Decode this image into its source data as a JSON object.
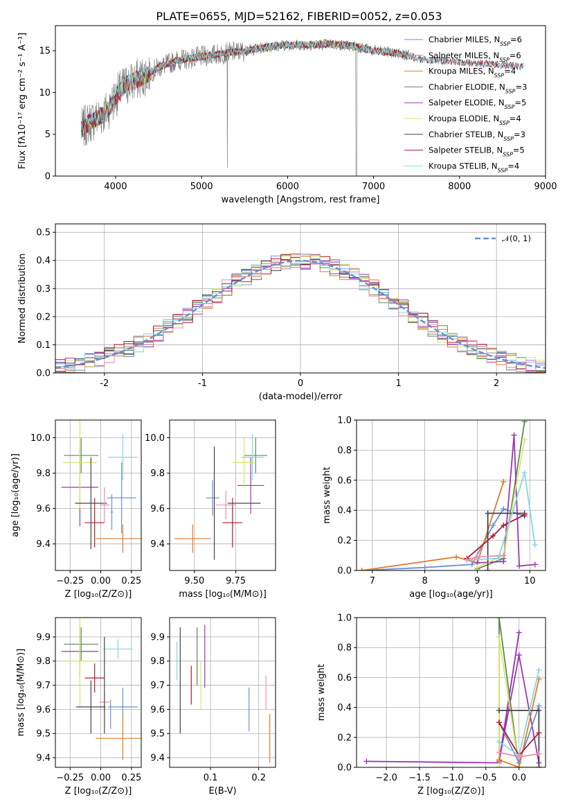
{
  "figure_title": "PLATE=0655, MJD=52162, FIBERID=0052, z=0.053",
  "colors": {
    "Chabrier MILES": "#6a8fd6",
    "Salpeter MILES": "#9a9aa0",
    "Kroupa MILES": "#e07b28",
    "Chabrier ELODIE": "#5c8a55",
    "Salpeter ELODIE": "#9b35b5",
    "Kroupa ELODIE": "#d9e66a",
    "Chabrier STELIB": "#444444",
    "Salpeter STELIB": "#b2182b",
    "Kroupa STELIB": "#84d8e0",
    "pink": "#f08cb4",
    "data": "#7f7f7f",
    "normal": "#6a8fd6"
  },
  "chart_data": [
    {
      "type": "line",
      "xlabel": "wavelength [Angstrom, rest frame]",
      "ylabel": "Flux [fλ10⁻¹⁷ erg cm⁻² s⁻¹ A⁻¹]",
      "xlim": [
        3300,
        9000
      ],
      "ylim": [
        0,
        18
      ],
      "xticks": [
        4000,
        5000,
        6000,
        7000,
        8000,
        9000
      ],
      "yticks": [
        0,
        5,
        10,
        15
      ],
      "legend_position": "right",
      "legend": [
        {
          "label": "Chabrier MILES, N",
          "sub": "SSP",
          "suffix": "=6"
        },
        {
          "label": "Salpeter MILES, N",
          "sub": "SSP",
          "suffix": "=6"
        },
        {
          "label": "Kroupa MILES, N",
          "sub": "SSP",
          "suffix": "=4"
        },
        {
          "label": "Chabrier ELODIE, N",
          "sub": "SSP",
          "suffix": "=3"
        },
        {
          "label": "Salpeter ELODIE, N",
          "sub": "SSP",
          "suffix": "=5"
        },
        {
          "label": "Kroupa ELODIE, N",
          "sub": "SSP",
          "suffix": "=4"
        },
        {
          "label": "Chabrier STELIB, N",
          "sub": "SSP",
          "suffix": "=3"
        },
        {
          "label": "Salpeter STELIB, N",
          "sub": "SSP",
          "suffix": "=5"
        },
        {
          "label": "Kroupa STELIB, N",
          "sub": "SSP",
          "suffix": "=4"
        }
      ],
      "continuum": {
        "wavelength": [
          3600,
          3700,
          3800,
          3900,
          4000,
          4100,
          4300,
          4500,
          4700,
          5000,
          5200,
          5500,
          5800,
          6000,
          6300,
          6500,
          6800,
          7000,
          7200,
          7400,
          7500
        ],
        "flux": [
          5.5,
          6.5,
          7.0,
          7.8,
          9.5,
          10.8,
          11.8,
          13.0,
          13.8,
          14.3,
          14.6,
          15.0,
          15.5,
          15.7,
          15.7,
          15.8,
          15.5,
          15.0,
          14.8,
          14.5,
          14.0
        ]
      }
    },
    {
      "type": "histogram",
      "xlabel": "(data-model)/error",
      "ylabel": "Normed distribution",
      "xlim": [
        -2.5,
        2.5
      ],
      "ylim": [
        0,
        0.53
      ],
      "xticks": [
        -2,
        -1,
        0,
        1,
        2
      ],
      "yticks": [
        0.0,
        0.1,
        0.2,
        0.3,
        0.4,
        0.5
      ],
      "normal_curve_label": "𝒩(0, 1)",
      "bin_width": 0.1
    },
    {
      "type": "errorbar",
      "xlabel": "Z [log₁₀(Z/Z⊙)]",
      "ylabel": "age  [log₁₀(age/yr)]",
      "xlim": [
        -0.37,
        0.33
      ],
      "ylim": [
        9.25,
        10.1
      ],
      "xticks": [
        -0.25,
        0.0,
        0.25
      ],
      "xtick_labels": [
        "−0.25",
        "0.00",
        "0.25"
      ],
      "yticks": [
        9.4,
        9.6,
        9.8,
        10.0
      ],
      "points": [
        {
          "color": "Chabrier MILES",
          "x": 0.17,
          "xerr": 0.12,
          "y": 9.66,
          "yerr": 0.2
        },
        {
          "color": "Kroupa MILES",
          "x": 0.18,
          "xerr": 0.22,
          "y": 9.43,
          "yerr": 0.08
        },
        {
          "color": "Chabrier ELODIE",
          "x": -0.16,
          "xerr": 0.14,
          "y": 9.9,
          "yerr": 0.1
        },
        {
          "color": "Salpeter ELODIE",
          "x": -0.17,
          "xerr": 0.15,
          "y": 9.72,
          "yerr": 0.22
        },
        {
          "color": "Kroupa ELODIE",
          "x": -0.17,
          "xerr": 0.14,
          "y": 9.86,
          "yerr": 0.26
        },
        {
          "color": "Chabrier STELIB",
          "x": -0.08,
          "xerr": 0.13,
          "y": 9.63,
          "yerr": 0.26
        },
        {
          "color": "Salpeter STELIB",
          "x": -0.05,
          "xerr": 0.08,
          "y": 9.52,
          "yerr": 0.14
        },
        {
          "color": "Kroupa STELIB",
          "x": 0.18,
          "xerr": 0.12,
          "y": 9.89,
          "yerr": 0.13
        },
        {
          "color": "pink",
          "x": 0.03,
          "xerr": 0.04,
          "y": 9.62,
          "yerr": 0.1
        },
        {
          "color": "Chabrier MILES",
          "x": 0.09,
          "xerr": 0.01,
          "y": 9.58,
          "yerr": 0.1
        }
      ]
    },
    {
      "type": "errorbar",
      "xlabel": "mass [log₁₀(M/M⊙)]",
      "xlim": [
        9.35,
        9.99
      ],
      "ylim": [
        9.25,
        10.1
      ],
      "xticks": [
        9.5,
        9.75
      ],
      "xtick_labels": [
        "9.50",
        "9.75"
      ],
      "yticks": [
        9.4,
        9.6,
        9.8,
        10.0
      ],
      "points": [
        {
          "color": "Chabrier MILES",
          "x": 9.61,
          "xerr": 0.04,
          "y": 9.66,
          "yerr": 0.1
        },
        {
          "color": "Kroupa MILES",
          "x": 9.49,
          "xerr": 0.11,
          "y": 9.43,
          "yerr": 0.08
        },
        {
          "color": "Chabrier ELODIE",
          "x": 9.87,
          "xerr": 0.07,
          "y": 9.9,
          "yerr": 0.1
        },
        {
          "color": "Salpeter ELODIE",
          "x": 9.84,
          "xerr": 0.08,
          "y": 9.73,
          "yerr": 0.16
        },
        {
          "color": "Kroupa ELODIE",
          "x": 9.8,
          "xerr": 0.07,
          "y": 9.86,
          "yerr": 0.14
        },
        {
          "color": "Chabrier STELIB",
          "x": 9.62,
          "xerr": 0.0,
          "y": 9.63,
          "yerr": 0.32
        },
        {
          "color": "Salpeter STELIB",
          "x": 9.73,
          "xerr": 0.06,
          "y": 9.52,
          "yerr": 0.14
        },
        {
          "color": "Kroupa STELIB",
          "x": 9.85,
          "xerr": 0.07,
          "y": 9.89,
          "yerr": 0.13
        },
        {
          "color": "pink",
          "x": 9.69,
          "xerr": 0.06,
          "y": 9.62,
          "yerr": 0.08
        },
        {
          "color": "Chabrier STELIB",
          "x": 9.8,
          "xerr": 0.1,
          "y": 9.63,
          "yerr": 0.0
        }
      ]
    },
    {
      "type": "line",
      "xlabel": "age  [log₁₀(age/yr)]",
      "ylabel": "mass weight",
      "xlim": [
        6.7,
        10.3
      ],
      "ylim": [
        0,
        1.0
      ],
      "xticks": [
        7,
        8,
        9,
        10
      ],
      "yticks": [
        0.0,
        0.2,
        0.4,
        0.6,
        0.8,
        1.0
      ],
      "series": [
        {
          "color": "Chabrier MILES",
          "x": [
            6.8,
            8.0,
            8.9,
            9.3,
            9.5,
            9.9
          ],
          "y": [
            0.0,
            0.02,
            0.04,
            0.3,
            0.41,
            0.36
          ]
        },
        {
          "color": "Kroupa MILES",
          "x": [
            6.8,
            8.6,
            9.0,
            9.5
          ],
          "y": [
            0.0,
            0.09,
            0.05,
            0.59
          ]
        },
        {
          "color": "Chabrier ELODIE",
          "x": [
            9.0,
            9.5,
            9.9
          ],
          "y": [
            0.01,
            0.08,
            0.99
          ]
        },
        {
          "color": "Salpeter ELODIE",
          "x": [
            9.0,
            9.5,
            9.7,
            9.8,
            10.1
          ],
          "y": [
            0.05,
            0.06,
            0.9,
            0.03,
            0.04
          ]
        },
        {
          "color": "Kroupa ELODIE",
          "x": [
            9.0,
            9.5,
            9.9
          ],
          "y": [
            0.02,
            0.1,
            0.87
          ]
        },
        {
          "color": "Chabrier STELIB",
          "x": [
            9.2,
            9.2,
            9.9
          ],
          "y": [
            0.0,
            0.38,
            0.38
          ]
        },
        {
          "color": "Salpeter STELIB",
          "x": [
            8.8,
            9.3,
            9.5,
            9.9
          ],
          "y": [
            0.08,
            0.23,
            0.3,
            0.37
          ]
        },
        {
          "color": "Kroupa STELIB",
          "x": [
            8.8,
            9.4,
            9.9,
            10.1
          ],
          "y": [
            0.07,
            0.08,
            0.65,
            0.17
          ]
        },
        {
          "color": "pink",
          "x": [
            8.8,
            9.0,
            9.5
          ],
          "y": [
            0.07,
            0.09,
            0.1
          ]
        }
      ]
    },
    {
      "type": "errorbar",
      "xlabel": "Z [log₁₀(Z/Z⊙)]",
      "ylabel": "mass [log₁₀(M/M⊙)]",
      "xlim": [
        -0.37,
        0.33
      ],
      "ylim": [
        9.36,
        9.98
      ],
      "xticks": [
        -0.25,
        0.0,
        0.25
      ],
      "xtick_labels": [
        "−0.25",
        "0.00",
        "0.25"
      ],
      "yticks": [
        9.4,
        9.5,
        9.6,
        9.7,
        9.8,
        9.9
      ],
      "points": [
        {
          "color": "Chabrier MILES",
          "x": 0.18,
          "xerr": 0.12,
          "y": 9.61,
          "yerr": 0.08
        },
        {
          "color": "Kroupa MILES",
          "x": 0.18,
          "xerr": 0.22,
          "y": 9.48,
          "yerr": 0.09
        },
        {
          "color": "Chabrier ELODIE",
          "x": -0.16,
          "xerr": 0.14,
          "y": 9.87,
          "yerr": 0.07
        },
        {
          "color": "Salpeter ELODIE",
          "x": -0.17,
          "xerr": 0.15,
          "y": 9.84,
          "yerr": 0.11
        },
        {
          "color": "Kroupa ELODIE",
          "x": -0.17,
          "xerr": 0.14,
          "y": 9.8,
          "yerr": 0.19
        },
        {
          "color": "Chabrier STELIB",
          "x": -0.08,
          "xerr": 0.12,
          "y": 9.61,
          "yerr": 0.11
        },
        {
          "color": "Salpeter STELIB",
          "x": -0.05,
          "xerr": 0.08,
          "y": 9.73,
          "yerr": 0.06
        },
        {
          "color": "Kroupa STELIB",
          "x": 0.14,
          "xerr": 0.12,
          "y": 9.85,
          "yerr": 0.04
        },
        {
          "color": "pink",
          "x": 0.03,
          "xerr": 0.04,
          "y": 9.63,
          "yerr": 0.04
        },
        {
          "color": "Chabrier MILES",
          "x": 0.08,
          "xerr": 0.0,
          "y": 9.58,
          "yerr": 0.06
        },
        {
          "color": "Chabrier STELIB",
          "x": 0.03,
          "xerr": 0.0,
          "y": 9.7,
          "yerr": 0.2
        }
      ]
    },
    {
      "type": "errorbar",
      "xlabel": "E(B-V)",
      "xlim": [
        0.015,
        0.235
      ],
      "ylim": [
        9.36,
        9.98
      ],
      "xticks": [
        0.1,
        0.2
      ],
      "xtick_labels": [
        "0.1",
        "0.2"
      ],
      "yticks": [
        9.4,
        9.5,
        9.6,
        9.7,
        9.8,
        9.9
      ],
      "points": [
        {
          "color": "Kroupa STELIB",
          "x": 0.03,
          "y": 9.8,
          "yerr": 0.08
        },
        {
          "color": "Chabrier STELIB",
          "x": 0.037,
          "y": 9.72,
          "yerr": 0.22
        },
        {
          "color": "Salpeter STELIB",
          "x": 0.06,
          "y": 9.7,
          "yerr": 0.08
        },
        {
          "color": "Chabrier ELODIE",
          "x": 0.072,
          "y": 9.82,
          "yerr": 0.12
        },
        {
          "color": "Kroupa ELODIE",
          "x": 0.08,
          "y": 9.7,
          "yerr": 0.1
        },
        {
          "color": "Salpeter ELODIE",
          "x": 0.088,
          "y": 9.82,
          "yerr": 0.13
        },
        {
          "color": "Chabrier MILES",
          "x": 0.18,
          "y": 9.6,
          "yerr": 0.09
        },
        {
          "color": "pink",
          "x": 0.215,
          "y": 9.67,
          "yerr": 0.07
        },
        {
          "color": "Kroupa MILES",
          "x": 0.223,
          "y": 9.48,
          "yerr": 0.1
        }
      ]
    },
    {
      "type": "line",
      "xlabel": "Z [log₁₀(Z/Z⊙)]",
      "ylabel": "mass weight",
      "xlim": [
        -2.45,
        0.4
      ],
      "ylim": [
        0,
        1.0
      ],
      "xticks": [
        -2.0,
        -1.5,
        -1.0,
        -0.5,
        0.0
      ],
      "xtick_labels": [
        "−2.0",
        "−1.5",
        "−1.0",
        "−0.5",
        "0.0"
      ],
      "yticks": [
        0.0,
        0.2,
        0.4,
        0.6,
        0.8,
        1.0
      ],
      "series": [
        {
          "color": "Salpeter ELODIE",
          "x": [
            -2.3,
            -0.3,
            0.0,
            -0.3,
            0.0,
            0.3
          ],
          "y": [
            0.04,
            0.03,
            0.9,
            0.04,
            0.75,
            0.03
          ]
        },
        {
          "color": "Chabrier ELODIE",
          "x": [
            -0.3,
            -0.3,
            0.0,
            0.3
          ],
          "y": [
            0.0,
            1.0,
            0.0,
            0.0
          ]
        },
        {
          "color": "Kroupa ELODIE",
          "x": [
            -0.3,
            -0.3,
            0.0,
            0.3
          ],
          "y": [
            0.0,
            0.87,
            0.0,
            0.0
          ]
        },
        {
          "color": "Chabrier MILES",
          "x": [
            -0.3,
            0.0,
            0.3
          ],
          "y": [
            0.3,
            0.03,
            0.41
          ]
        },
        {
          "color": "Kroupa MILES",
          "x": [
            -0.3,
            0.0,
            0.3
          ],
          "y": [
            0.05,
            0.0,
            0.59
          ]
        },
        {
          "color": "Chabrier STELIB",
          "x": [
            -0.3,
            0.3,
            0.3
          ],
          "y": [
            0.38,
            0.38,
            0.0
          ]
        },
        {
          "color": "Salpeter STELIB",
          "x": [
            -0.3,
            0.0,
            0.3
          ],
          "y": [
            0.3,
            0.08,
            0.23
          ]
        },
        {
          "color": "Kroupa STELIB",
          "x": [
            -0.3,
            0.0,
            0.3
          ],
          "y": [
            0.17,
            0.08,
            0.65
          ]
        },
        {
          "color": "pink",
          "x": [
            -0.3,
            0.0,
            0.3
          ],
          "y": [
            0.1,
            0.07,
            0.09
          ]
        }
      ]
    }
  ]
}
